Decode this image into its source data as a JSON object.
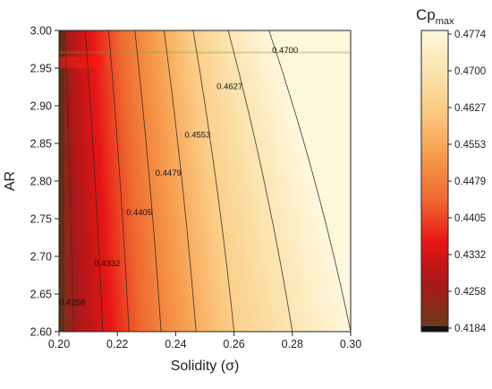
{
  "chart_data": {
    "type": "heatmap",
    "subtype": "filled-contour",
    "xlabel": "Solidity (σ)",
    "ylabel": "AR",
    "colorbar_title": "Cp",
    "colorbar_title_sub": "max",
    "xlim": [
      0.2,
      0.3
    ],
    "ylim": [
      2.6,
      3.0
    ],
    "x_ticks": [
      "0.20",
      "0.22",
      "0.24",
      "0.26",
      "0.28",
      "0.30"
    ],
    "y_ticks": [
      "2.60",
      "2.65",
      "2.70",
      "2.75",
      "2.80",
      "2.85",
      "2.90",
      "2.95",
      "3.00"
    ],
    "colorbar_ticks": [
      "0.4184",
      "0.4258",
      "0.4332",
      "0.4405",
      "0.4479",
      "0.4553",
      "0.4627",
      "0.4700",
      "0.4774"
    ],
    "colorbar_range": [
      0.4184,
      0.4774
    ],
    "colorscale": [
      "#6b3a1c",
      "#a81818",
      "#e81515",
      "#ef6a30",
      "#f59a4a",
      "#fbc77f",
      "#fbe3ad",
      "#fff7dc"
    ],
    "contours": [
      {
        "level": "0.4258",
        "x_at_ylim_low": 0.205,
        "x_at_ylim_high": 0.202,
        "label_x": 0.2045,
        "label_y": 2.635
      },
      {
        "level": "0.4332",
        "x_at_ylim_low": 0.215,
        "x_at_ylim_high": 0.209,
        "label_x": 0.2165,
        "label_y": 2.687
      },
      {
        "level": "0.4405",
        "x_at_ylim_low": 0.224,
        "x_at_ylim_high": 0.217,
        "label_x": 0.2275,
        "label_y": 2.755
      },
      {
        "level": "0.4479",
        "x_at_ylim_low": 0.235,
        "x_at_ylim_high": 0.226,
        "label_x": 0.2375,
        "label_y": 2.807
      },
      {
        "level": "0.4553",
        "x_at_ylim_low": 0.247,
        "x_at_ylim_high": 0.236,
        "label_x": 0.2475,
        "label_y": 2.858
      },
      {
        "level": "0.4627",
        "x_at_ylim_low": 0.26,
        "x_at_ylim_high": 0.246,
        "label_x": 0.2585,
        "label_y": 2.922
      },
      {
        "level": "0.4700",
        "x_at_ylim_low": 0.28,
        "x_at_ylim_high": 0.258,
        "label_x": 0.2775,
        "label_y": 2.97
      },
      {
        "level": "0.4774",
        "x_at_ylim_low": 0.3,
        "x_at_ylim_high": 0.272
      }
    ]
  }
}
